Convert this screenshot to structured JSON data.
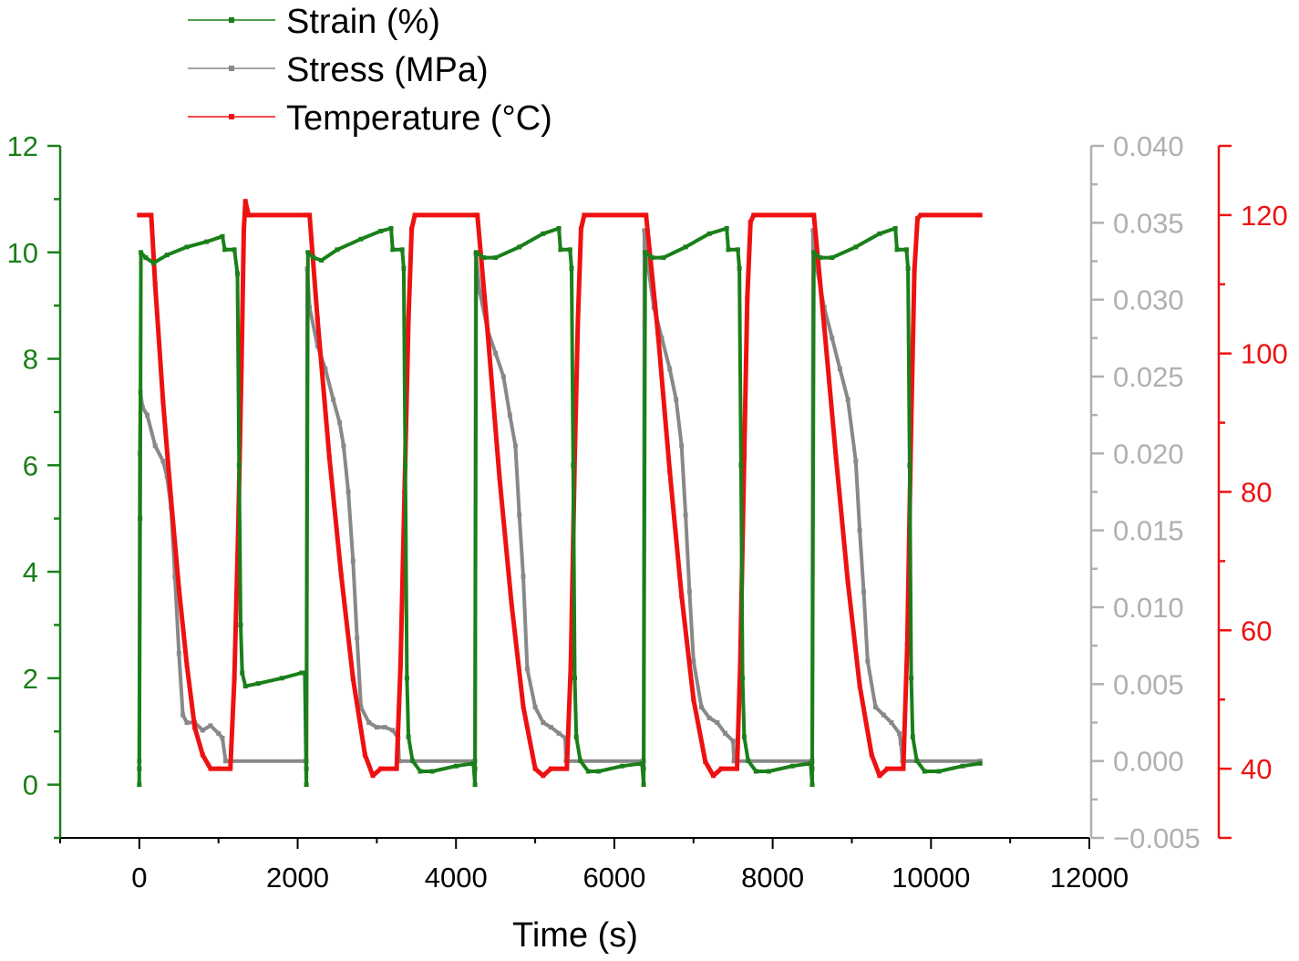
{
  "chart_data": {
    "type": "line",
    "xlabel": "Time (s)",
    "x_axis": {
      "range": [
        -1000,
        12000
      ],
      "ticks": [
        0,
        2000,
        4000,
        6000,
        8000,
        10000,
        12000
      ],
      "tick_labels": [
        "0",
        "2000",
        "4000",
        "6000",
        "8000",
        "10000",
        "12000"
      ]
    },
    "y_axes": [
      {
        "id": "strain",
        "side": "left",
        "color": "#1a7f1a",
        "label": "",
        "range": [
          -1,
          12
        ],
        "ticks": [
          0,
          2,
          4,
          6,
          8,
          10,
          12
        ],
        "tick_labels": [
          "0",
          "2",
          "4",
          "6",
          "8",
          "10",
          "12"
        ]
      },
      {
        "id": "stress",
        "side": "right",
        "color": "#b0b0b0",
        "label": "",
        "range": [
          -0.005,
          0.04
        ],
        "ticks": [
          -0.005,
          0,
          0.005,
          0.01,
          0.015,
          0.02,
          0.025,
          0.03,
          0.035,
          0.04
        ],
        "tick_labels": [
          "−0.005",
          "0.000",
          "0.005",
          "0.010",
          "0.015",
          "0.020",
          "0.025",
          "0.030",
          "0.035",
          "0.040"
        ]
      },
      {
        "id": "temperature",
        "side": "right-outer",
        "color": "#ee1111",
        "label": "",
        "range": [
          30,
          130
        ],
        "ticks": [
          40,
          60,
          80,
          100,
          120
        ],
        "tick_labels": [
          "40",
          "60",
          "80",
          "100",
          "120"
        ]
      }
    ],
    "legend": {
      "placement": "top-left (above plot)",
      "entries": [
        "Strain (%)",
        "Stress (MPa)",
        "Temperature (°C)"
      ]
    },
    "series": [
      {
        "name": "Strain (%)",
        "axis": "strain",
        "color": "#1a7f1a",
        "points": [
          [
            0,
            0
          ],
          [
            0,
            0.3
          ],
          [
            10,
            5
          ],
          [
            20,
            10
          ],
          [
            80,
            9.9
          ],
          [
            180,
            9.8
          ],
          [
            350,
            9.95
          ],
          [
            600,
            10.1
          ],
          [
            850,
            10.2
          ],
          [
            1050,
            10.3
          ],
          [
            1080,
            10.05
          ],
          [
            1200,
            10.05
          ],
          [
            1240,
            9.6
          ],
          [
            1260,
            6
          ],
          [
            1280,
            3
          ],
          [
            1300,
            2.1
          ],
          [
            1340,
            1.85
          ],
          [
            1500,
            1.9
          ],
          [
            1800,
            2.0
          ],
          [
            2050,
            2.1
          ],
          [
            2090,
            2.1
          ],
          [
            2110,
            0
          ],
          [
            2110,
            0.3
          ],
          [
            2130,
            10
          ],
          [
            2200,
            9.9
          ],
          [
            2300,
            9.85
          ],
          [
            2500,
            10.05
          ],
          [
            2800,
            10.25
          ],
          [
            3050,
            10.4
          ],
          [
            3180,
            10.45
          ],
          [
            3200,
            10.05
          ],
          [
            3320,
            10.05
          ],
          [
            3340,
            9.7
          ],
          [
            3360,
            6
          ],
          [
            3380,
            2
          ],
          [
            3400,
            0.9
          ],
          [
            3450,
            0.45
          ],
          [
            3550,
            0.25
          ],
          [
            3700,
            0.25
          ],
          [
            4000,
            0.35
          ],
          [
            4220,
            0.4
          ],
          [
            4240,
            0
          ],
          [
            4240,
            0.3
          ],
          [
            4255,
            10
          ],
          [
            4350,
            9.9
          ],
          [
            4500,
            9.9
          ],
          [
            4800,
            10.1
          ],
          [
            5100,
            10.35
          ],
          [
            5300,
            10.45
          ],
          [
            5320,
            10.05
          ],
          [
            5440,
            10.05
          ],
          [
            5460,
            9.7
          ],
          [
            5480,
            6
          ],
          [
            5500,
            2
          ],
          [
            5520,
            0.9
          ],
          [
            5570,
            0.45
          ],
          [
            5670,
            0.25
          ],
          [
            5800,
            0.25
          ],
          [
            6100,
            0.35
          ],
          [
            6350,
            0.4
          ],
          [
            6370,
            0
          ],
          [
            6370,
            0.3
          ],
          [
            6390,
            10
          ],
          [
            6480,
            9.9
          ],
          [
            6620,
            9.9
          ],
          [
            6900,
            10.1
          ],
          [
            7200,
            10.35
          ],
          [
            7420,
            10.45
          ],
          [
            7440,
            10.05
          ],
          [
            7560,
            10.05
          ],
          [
            7580,
            9.7
          ],
          [
            7600,
            6
          ],
          [
            7620,
            2
          ],
          [
            7640,
            0.9
          ],
          [
            7690,
            0.45
          ],
          [
            7790,
            0.25
          ],
          [
            7950,
            0.25
          ],
          [
            8250,
            0.35
          ],
          [
            8480,
            0.4
          ],
          [
            8500,
            0
          ],
          [
            8500,
            0.3
          ],
          [
            8520,
            10
          ],
          [
            8600,
            9.9
          ],
          [
            8750,
            9.9
          ],
          [
            9050,
            10.1
          ],
          [
            9350,
            10.35
          ],
          [
            9550,
            10.45
          ],
          [
            9570,
            10.05
          ],
          [
            9690,
            10.05
          ],
          [
            9710,
            9.7
          ],
          [
            9730,
            6
          ],
          [
            9750,
            2
          ],
          [
            9770,
            0.9
          ],
          [
            9820,
            0.45
          ],
          [
            9920,
            0.25
          ],
          [
            10100,
            0.25
          ],
          [
            10400,
            0.35
          ],
          [
            10620,
            0.4
          ]
        ]
      },
      {
        "name": "Stress (MPa)",
        "axis": "stress",
        "color": "#888888",
        "points": [
          [
            0,
            0
          ],
          [
            5,
            0.02
          ],
          [
            15,
            0.024
          ],
          [
            40,
            0.023
          ],
          [
            100,
            0.0225
          ],
          [
            200,
            0.0205
          ],
          [
            300,
            0.0195
          ],
          [
            350,
            0.0185
          ],
          [
            400,
            0.0165
          ],
          [
            450,
            0.012
          ],
          [
            500,
            0.007
          ],
          [
            550,
            0.003
          ],
          [
            600,
            0.0025
          ],
          [
            700,
            0.0025
          ],
          [
            800,
            0.002
          ],
          [
            900,
            0.0023
          ],
          [
            1000,
            0.0018
          ],
          [
            1050,
            0.0015
          ],
          [
            1090,
            0
          ],
          [
            2100,
            0
          ],
          [
            2110,
            0
          ],
          [
            2120,
            0.032
          ],
          [
            2150,
            0.0295
          ],
          [
            2250,
            0.027
          ],
          [
            2350,
            0.0255
          ],
          [
            2450,
            0.0235
          ],
          [
            2530,
            0.022
          ],
          [
            2580,
            0.0205
          ],
          [
            2640,
            0.0175
          ],
          [
            2700,
            0.013
          ],
          [
            2750,
            0.008
          ],
          [
            2800,
            0.0035
          ],
          [
            2900,
            0.0025
          ],
          [
            3000,
            0.0022
          ],
          [
            3100,
            0.0022
          ],
          [
            3200,
            0.002
          ],
          [
            3270,
            0.0015
          ],
          [
            3280,
            0
          ],
          [
            4230,
            0
          ],
          [
            4240,
            0
          ],
          [
            4250,
            0.033
          ],
          [
            4300,
            0.0305
          ],
          [
            4400,
            0.028
          ],
          [
            4500,
            0.0265
          ],
          [
            4600,
            0.025
          ],
          [
            4680,
            0.0225
          ],
          [
            4750,
            0.0205
          ],
          [
            4800,
            0.016
          ],
          [
            4850,
            0.012
          ],
          [
            4900,
            0.006
          ],
          [
            5000,
            0.0035
          ],
          [
            5100,
            0.0025
          ],
          [
            5200,
            0.0022
          ],
          [
            5300,
            0.0018
          ],
          [
            5380,
            0.0015
          ],
          [
            5390,
            0
          ],
          [
            6360,
            0
          ],
          [
            6370,
            0
          ],
          [
            6380,
            0.0345
          ],
          [
            6430,
            0.032
          ],
          [
            6500,
            0.0295
          ],
          [
            6600,
            0.0275
          ],
          [
            6700,
            0.0255
          ],
          [
            6780,
            0.0235
          ],
          [
            6850,
            0.0205
          ],
          [
            6900,
            0.016
          ],
          [
            6950,
            0.011
          ],
          [
            7000,
            0.0065
          ],
          [
            7100,
            0.0035
          ],
          [
            7200,
            0.0028
          ],
          [
            7300,
            0.0025
          ],
          [
            7400,
            0.0018
          ],
          [
            7500,
            0.0013
          ],
          [
            7510,
            0
          ],
          [
            8490,
            0
          ],
          [
            8500,
            0
          ],
          [
            8510,
            0.0345
          ],
          [
            8560,
            0.032
          ],
          [
            8650,
            0.0295
          ],
          [
            8750,
            0.0275
          ],
          [
            8850,
            0.0255
          ],
          [
            8950,
            0.0235
          ],
          [
            9050,
            0.0195
          ],
          [
            9100,
            0.015
          ],
          [
            9150,
            0.011
          ],
          [
            9200,
            0.0065
          ],
          [
            9300,
            0.0035
          ],
          [
            9400,
            0.003
          ],
          [
            9500,
            0.0025
          ],
          [
            9600,
            0.0018
          ],
          [
            9620,
            0.0012
          ],
          [
            9640,
            0
          ],
          [
            10620,
            0
          ]
        ]
      },
      {
        "name": "Temperature (°C)",
        "axis": "temperature",
        "color": "#ee1111",
        "points": [
          [
            0,
            120
          ],
          [
            150,
            120
          ],
          [
            200,
            110
          ],
          [
            300,
            93
          ],
          [
            400,
            79
          ],
          [
            500,
            66
          ],
          [
            600,
            55
          ],
          [
            700,
            46
          ],
          [
            800,
            42
          ],
          [
            900,
            40
          ],
          [
            1000,
            40
          ],
          [
            1150,
            40
          ],
          [
            1200,
            53
          ],
          [
            1250,
            75
          ],
          [
            1290,
            98
          ],
          [
            1320,
            118
          ],
          [
            1340,
            122
          ],
          [
            1380,
            120
          ],
          [
            2100,
            120
          ],
          [
            2150,
            120
          ],
          [
            2250,
            105
          ],
          [
            2400,
            85
          ],
          [
            2550,
            68
          ],
          [
            2700,
            53
          ],
          [
            2850,
            42
          ],
          [
            2950,
            39
          ],
          [
            3050,
            40
          ],
          [
            3250,
            40
          ],
          [
            3300,
            55
          ],
          [
            3350,
            80
          ],
          [
            3400,
            105
          ],
          [
            3440,
            118
          ],
          [
            3480,
            120
          ],
          [
            4250,
            120
          ],
          [
            4270,
            120
          ],
          [
            4400,
            103
          ],
          [
            4550,
            82
          ],
          [
            4700,
            64
          ],
          [
            4850,
            49
          ],
          [
            5000,
            40
          ],
          [
            5100,
            39
          ],
          [
            5200,
            40
          ],
          [
            5400,
            40
          ],
          [
            5450,
            55
          ],
          [
            5500,
            85
          ],
          [
            5540,
            105
          ],
          [
            5580,
            118
          ],
          [
            5620,
            120
          ],
          [
            6370,
            120
          ],
          [
            6400,
            120
          ],
          [
            6550,
            103
          ],
          [
            6700,
            83
          ],
          [
            6850,
            65
          ],
          [
            7000,
            50
          ],
          [
            7150,
            41
          ],
          [
            7250,
            39
          ],
          [
            7350,
            40
          ],
          [
            7550,
            40
          ],
          [
            7590,
            55
          ],
          [
            7640,
            85
          ],
          [
            7680,
            108
          ],
          [
            7720,
            119
          ],
          [
            7760,
            120
          ],
          [
            8500,
            120
          ],
          [
            8520,
            120
          ],
          [
            8650,
            104
          ],
          [
            8800,
            85
          ],
          [
            8950,
            67
          ],
          [
            9100,
            52
          ],
          [
            9250,
            42
          ],
          [
            9350,
            39
          ],
          [
            9450,
            40
          ],
          [
            9650,
            40
          ],
          [
            9700,
            58
          ],
          [
            9750,
            90
          ],
          [
            9790,
            112
          ],
          [
            9830,
            119.5
          ],
          [
            9870,
            120
          ],
          [
            10620,
            120
          ]
        ]
      }
    ]
  }
}
